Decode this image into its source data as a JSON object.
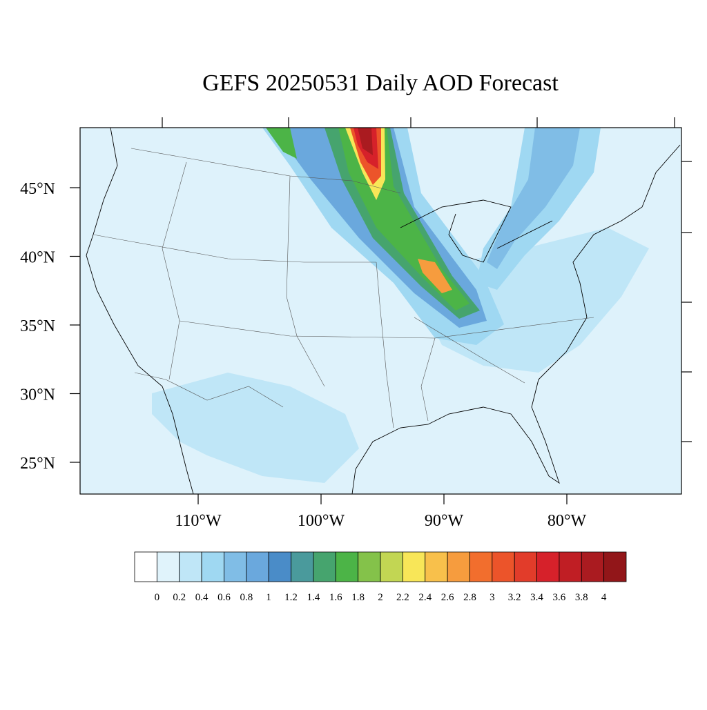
{
  "title": "GEFS 20250531 Daily AOD Forecast",
  "lat_ticks": [
    {
      "value": 45,
      "label": "45°N"
    },
    {
      "value": 40,
      "label": "40°N"
    },
    {
      "value": 35,
      "label": "35°N"
    },
    {
      "value": 30,
      "label": "30°N"
    },
    {
      "value": 25,
      "label": "25°N"
    }
  ],
  "lon_ticks": [
    {
      "value": -110,
      "label": "110°W"
    },
    {
      "value": -100,
      "label": "100°W"
    },
    {
      "value": -90,
      "label": "90°W"
    },
    {
      "value": -80,
      "label": "80°W"
    }
  ],
  "colorbar": {
    "levels": [
      0,
      0.2,
      0.4,
      0.6,
      0.8,
      1,
      1.2,
      1.4,
      1.6,
      1.8,
      2,
      2.2,
      2.4,
      2.6,
      2.8,
      3,
      3.2,
      3.4,
      3.6,
      3.8,
      4
    ],
    "colors": [
      "#ffffff",
      "#e0f3fb",
      "#bfe6f7",
      "#9fd8f2",
      "#80bde6",
      "#6aa8dd",
      "#4a8cc8",
      "#4a9a9c",
      "#46a46e",
      "#4cb447",
      "#84c24a",
      "#c2d653",
      "#f8e658",
      "#f8c04b",
      "#f69c3e",
      "#f26e2d",
      "#ec542a",
      "#e23c2a",
      "#d6212a",
      "#c01e24",
      "#aa1b20",
      "#921619"
    ]
  }
}
